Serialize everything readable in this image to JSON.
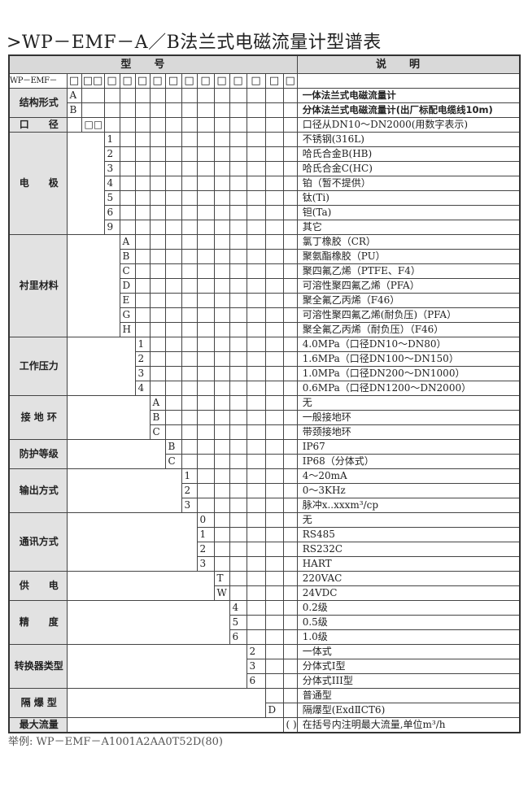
{
  "title": ">WP－EMF－A／B法兰式电磁流量计型谱表",
  "header": {
    "model": "型号",
    "description": "说明"
  },
  "prefix_row": {
    "label": "WP－EMF－",
    "boxes": [
      "□",
      "□□",
      "□",
      "□",
      "□",
      "□",
      "□",
      "□",
      "□",
      "□",
      "□",
      "□",
      "□",
      "□"
    ]
  },
  "groups": [
    {
      "label": "结构形式",
      "col": 1,
      "bold": true,
      "rows": [
        {
          "code": "A",
          "desc": "一体法兰式电磁流量计"
        },
        {
          "code": "B",
          "desc": "分体法兰式电磁流量计(出厂标配电缆线10m)"
        }
      ]
    },
    {
      "label": "口　　径",
      "col": 2,
      "rows": [
        {
          "code": "□□",
          "desc": "口径从DN10～DN2000(用数字表示)"
        }
      ]
    },
    {
      "label": "电　　极",
      "col": 3,
      "rows": [
        {
          "code": "1",
          "desc": "不锈钢(316L)"
        },
        {
          "code": "2",
          "desc": "哈氏合金B(HB)"
        },
        {
          "code": "3",
          "desc": "哈氏合金C(HC)"
        },
        {
          "code": "4",
          "desc": "铂（暂不提供）"
        },
        {
          "code": "5",
          "desc": "钛(Ti)"
        },
        {
          "code": "6",
          "desc": "钽(Ta)"
        },
        {
          "code": "9",
          "desc": "其它"
        }
      ]
    },
    {
      "label": "衬里材料",
      "col": 4,
      "rows": [
        {
          "code": "A",
          "desc": "氯丁橡胶（CR）"
        },
        {
          "code": "B",
          "desc": "聚氨酯橡胶（PU）"
        },
        {
          "code": "C",
          "desc": "聚四氟乙烯（PTFE、F4）"
        },
        {
          "code": "D",
          "desc": "可溶性聚四氟乙烯（PFA）"
        },
        {
          "code": "E",
          "desc": "聚全氟乙丙烯（F46）"
        },
        {
          "code": "G",
          "desc": "可溶性聚四氟乙烯(耐负压)（PFA）"
        },
        {
          "code": "H",
          "desc": "聚全氟乙丙烯（耐负压）（F46）"
        }
      ]
    },
    {
      "label": "工作压力",
      "col": 5,
      "rows": [
        {
          "code": "1",
          "desc": "4.0MPa（口径DN10～DN80）"
        },
        {
          "code": "2",
          "desc": "1.6MPa（口径DN100～DN150）"
        },
        {
          "code": "3",
          "desc": "1.0MPa（口径DN200～DN1000）"
        },
        {
          "code": "4",
          "desc": "0.6MPa（口径DN1200～DN2000）"
        }
      ]
    },
    {
      "label": "接 地 环",
      "col": 6,
      "rows": [
        {
          "code": "A",
          "desc": "无"
        },
        {
          "code": "B",
          "desc": "一般接地环"
        },
        {
          "code": "C",
          "desc": "带颈接地环"
        }
      ]
    },
    {
      "label": "防护等级",
      "col": 7,
      "rows": [
        {
          "code": "B",
          "desc": "IP67"
        },
        {
          "code": "C",
          "desc": "IP68（分体式）"
        }
      ]
    },
    {
      "label": "输出方式",
      "col": 8,
      "rows": [
        {
          "code": "1",
          "desc": "4～20mA"
        },
        {
          "code": "2",
          "desc": "0～3KHz"
        },
        {
          "code": "3",
          "desc": "脉冲x..xxxm³/cp"
        }
      ]
    },
    {
      "label": "通讯方式",
      "col": 9,
      "rows": [
        {
          "code": "0",
          "desc": "无"
        },
        {
          "code": "1",
          "desc": "RS485"
        },
        {
          "code": "2",
          "desc": "RS232C"
        },
        {
          "code": "3",
          "desc": "HART"
        }
      ]
    },
    {
      "label": "供　　电",
      "col": 10,
      "rows": [
        {
          "code": "T",
          "desc": "220VAC"
        },
        {
          "code": "W",
          "desc": "24VDC"
        }
      ]
    },
    {
      "label": "精　　度",
      "col": 11,
      "rows": [
        {
          "code": "4",
          "desc": "0.2级"
        },
        {
          "code": "5",
          "desc": "0.5级"
        },
        {
          "code": "6",
          "desc": "1.0级"
        }
      ]
    },
    {
      "label": "转换器类型",
      "col": 12,
      "rows": [
        {
          "code": "2",
          "desc": "一体式"
        },
        {
          "code": "3",
          "desc": "分体式I型"
        },
        {
          "code": "6",
          "desc": "分体式III型"
        }
      ]
    },
    {
      "label": "隔 爆 型",
      "col": 13,
      "rows": [
        {
          "code": "",
          "desc": "普通型"
        },
        {
          "code": "D",
          "desc": "隔爆型(ExdⅡCT6)"
        }
      ]
    },
    {
      "label": "最大流量",
      "col": 14,
      "rows": [
        {
          "code": "( )",
          "desc": "在括号内注明最大流量,单位m³/h"
        }
      ]
    }
  ],
  "example": "举例:  WP－EMF－A1001A2AA0T52D(80)"
}
